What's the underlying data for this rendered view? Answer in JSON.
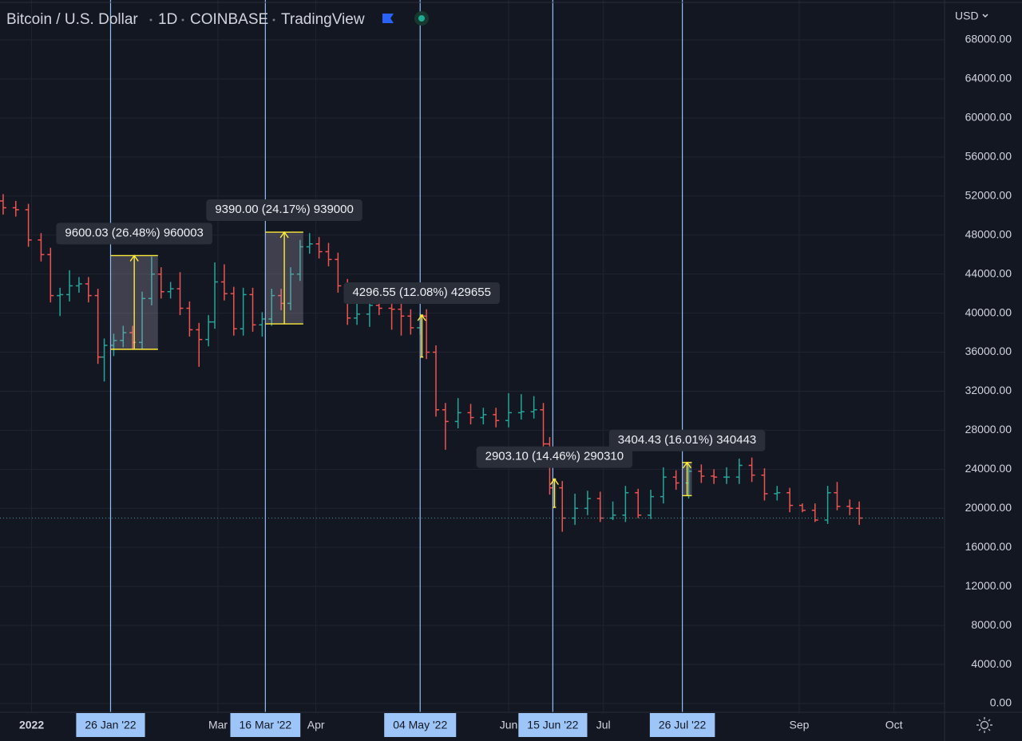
{
  "header": {
    "symbol": "Bitcoin / U.S. Dollar",
    "interval": "1D",
    "exchange": "COINBASE",
    "source": "TradingView",
    "currency": "USD"
  },
  "chart_data": {
    "type": "ohlc",
    "up_color": "#26a69a",
    "down_color": "#ef5350",
    "grid": true,
    "x": [
      "2021-12-23",
      "2021-12-27",
      "2021-12-31",
      "2022-01-04",
      "2022-01-07",
      "2022-01-10",
      "2022-01-13",
      "2022-01-16",
      "2022-01-19",
      "2022-01-22",
      "2022-01-24",
      "2022-01-27",
      "2022-01-30",
      "2022-02-02",
      "2022-02-05",
      "2022-02-08",
      "2022-02-11",
      "2022-02-14",
      "2022-02-17",
      "2022-02-20",
      "2022-02-23",
      "2022-02-26",
      "2022-02-28",
      "2022-03-03",
      "2022-03-06",
      "2022-03-09",
      "2022-03-12",
      "2022-03-15",
      "2022-03-18",
      "2022-03-21",
      "2022-03-24",
      "2022-03-27",
      "2022-03-30",
      "2022-04-02",
      "2022-04-05",
      "2022-04-08",
      "2022-04-11",
      "2022-04-14",
      "2022-04-18",
      "2022-04-21",
      "2022-04-25",
      "2022-04-28",
      "2022-05-01",
      "2022-05-04",
      "2022-05-06",
      "2022-05-09",
      "2022-05-12",
      "2022-05-16",
      "2022-05-20",
      "2022-05-24",
      "2022-05-28",
      "2022-06-01",
      "2022-06-05",
      "2022-06-09",
      "2022-06-12",
      "2022-06-14",
      "2022-06-18",
      "2022-06-22",
      "2022-06-26",
      "2022-06-30",
      "2022-07-04",
      "2022-07-08",
      "2022-07-12",
      "2022-07-16",
      "2022-07-20",
      "2022-07-24",
      "2022-07-28",
      "2022-08-01",
      "2022-08-05",
      "2022-08-09",
      "2022-08-13",
      "2022-08-17",
      "2022-08-21",
      "2022-08-25",
      "2022-08-29",
      "2022-09-02",
      "2022-09-06",
      "2022-09-10",
      "2022-09-13",
      "2022-09-17",
      "2022-09-20"
    ],
    "open": [
      51500,
      50800,
      50600,
      47500,
      46000,
      41800,
      41900,
      42800,
      43000,
      41800,
      35500,
      36700,
      37200,
      38000,
      37000,
      41500,
      44000,
      42200,
      42500,
      40500,
      38300,
      37300,
      39100,
      43200,
      42000,
      38400,
      41900,
      38800,
      39400,
      41800,
      41000,
      44000,
      46800,
      47100,
      46300,
      45500,
      42800,
      39500,
      39900,
      40800,
      40500,
      40400,
      39700,
      38500,
      39700,
      36000,
      30100,
      28900,
      29800,
      29300,
      29600,
      29000,
      29800,
      29900,
      30100,
      26600,
      22100,
      19000,
      20000,
      21000,
      19000,
      19300,
      21600,
      19300,
      21200,
      23200,
      22600,
      23800,
      23300,
      23200,
      23200,
      24400,
      23400,
      21500,
      21600,
      20300,
      19800,
      18800,
      21600,
      20200,
      20000
    ],
    "high": [
      52200,
      51500,
      51200,
      48200,
      46700,
      42600,
      44400,
      43700,
      43700,
      42500,
      37400,
      37900,
      38700,
      38700,
      42200,
      45800,
      44700,
      43200,
      44200,
      41200,
      39000,
      39800,
      45200,
      45000,
      42700,
      42600,
      42600,
      40100,
      42500,
      42500,
      44700,
      47500,
      48200,
      47800,
      47200,
      46200,
      43500,
      41500,
      41500,
      42900,
      41200,
      41100,
      40400,
      40000,
      40400,
      36700,
      30800,
      31300,
      30700,
      30300,
      30300,
      31800,
      31700,
      31500,
      30800,
      27300,
      22800,
      21500,
      21800,
      21700,
      20700,
      22300,
      22000,
      21900,
      24200,
      23900,
      24500,
      24500,
      24000,
      24200,
      25100,
      25200,
      24100,
      22300,
      22100,
      20500,
      20500,
      22300,
      22700,
      20900,
      20700
    ],
    "low": [
      50100,
      49900,
      46800,
      45300,
      41100,
      39700,
      41200,
      42100,
      41100,
      34800,
      33000,
      35600,
      36500,
      36300,
      36300,
      40800,
      41500,
      41500,
      39800,
      37600,
      34500,
      36600,
      38400,
      41300,
      37700,
      37700,
      38100,
      37600,
      38700,
      40300,
      40300,
      43300,
      46100,
      45600,
      44800,
      42100,
      38800,
      38800,
      38600,
      39800,
      38300,
      37700,
      37800,
      37800,
      35300,
      29400,
      26000,
      28200,
      28600,
      28600,
      28300,
      28300,
      29100,
      29200,
      25900,
      21400,
      17600,
      18300,
      19300,
      18600,
      18800,
      18600,
      19000,
      18900,
      20500,
      21900,
      21000,
      22600,
      22500,
      22500,
      22500,
      22700,
      20800,
      20800,
      19600,
      19600,
      18600,
      18400,
      19800,
      19300,
      18300
    ],
    "close": [
      50800,
      50600,
      47500,
      46000,
      41800,
      41900,
      42800,
      43000,
      41800,
      35500,
      36700,
      37200,
      38000,
      37000,
      41500,
      44000,
      42200,
      42500,
      40500,
      38300,
      37300,
      39100,
      43200,
      42000,
      38400,
      41900,
      38800,
      39400,
      41800,
      41000,
      44000,
      46800,
      47100,
      46300,
      45500,
      42800,
      39500,
      39900,
      40800,
      40500,
      40400,
      39700,
      38500,
      39700,
      36000,
      30100,
      28900,
      29800,
      29300,
      29600,
      29000,
      29800,
      29900,
      30100,
      26600,
      22100,
      19000,
      20000,
      21000,
      19000,
      19300,
      21600,
      19300,
      21200,
      23200,
      22600,
      23800,
      23300,
      23200,
      23200,
      24400,
      23400,
      21500,
      21600,
      20300,
      19800,
      18800,
      21600,
      20200,
      20000,
      19000
    ],
    "xlim": [
      "2021-12-22",
      "2022-10-17"
    ],
    "xticks": [
      {
        "value": "2022-01-01",
        "label": "2022"
      },
      {
        "value": "2022-03-01",
        "label": "Mar"
      },
      {
        "value": "2022-04-01",
        "label": "Apr"
      },
      {
        "value": "2022-06-01",
        "label": "Jun"
      },
      {
        "value": "2022-07-01",
        "label": "Jul"
      },
      {
        "value": "2022-09-01",
        "label": "Sep"
      },
      {
        "value": "2022-10-01",
        "label": "Oct"
      }
    ],
    "ylim": [
      -900,
      72090
    ],
    "yticks": [
      {
        "value": 0,
        "label": "0.00"
      },
      {
        "value": 4000,
        "label": "4000.00"
      },
      {
        "value": 8000,
        "label": "8000.00"
      },
      {
        "value": 12000,
        "label": "12000.00"
      },
      {
        "value": 16000,
        "label": "16000.00"
      },
      {
        "value": 20000,
        "label": "20000.00"
      },
      {
        "value": 24000,
        "label": "24000.00"
      },
      {
        "value": 28000,
        "label": "28000.00"
      },
      {
        "value": 32000,
        "label": "32000.00"
      },
      {
        "value": 36000,
        "label": "36000.00"
      },
      {
        "value": 40000,
        "label": "40000.00"
      },
      {
        "value": 44000,
        "label": "44000.00"
      },
      {
        "value": 48000,
        "label": "48000.00"
      },
      {
        "value": 52000,
        "label": "52000.00"
      },
      {
        "value": 56000,
        "label": "56000.00"
      },
      {
        "value": 60000,
        "label": "60000.00"
      },
      {
        "value": 64000,
        "label": "64000.00"
      },
      {
        "value": 68000,
        "label": "68000.00"
      }
    ],
    "annotations": [
      {
        "date_label": "26 Jan '22",
        "label": "9600.03 (26.48%) 960003",
        "start": "2022-01-26",
        "end": "2022-02-10",
        "from": 36300,
        "to": 45900
      },
      {
        "date_label": "16 Mar '22",
        "label": "9390.00 (24.17%) 939000",
        "start": "2022-03-16",
        "end": "2022-03-28",
        "from": 38900,
        "to": 48300
      },
      {
        "date_label": "04 May '22",
        "label": "4296.55 (12.08%) 429655",
        "start": "2022-05-04",
        "end": "2022-05-05",
        "from": 35500,
        "to": 39800
      },
      {
        "date_label": "15 Jun '22",
        "label": "2903.10 (14.46%) 290310",
        "start": "2022-06-15",
        "end": "2022-06-16",
        "from": 20100,
        "to": 23000
      },
      {
        "date_label": "26 Jul '22",
        "label": "3404.43 (16.01%) 340443",
        "start": "2022-07-26",
        "end": "2022-07-29",
        "from": 21300,
        "to": 24700
      }
    ]
  }
}
